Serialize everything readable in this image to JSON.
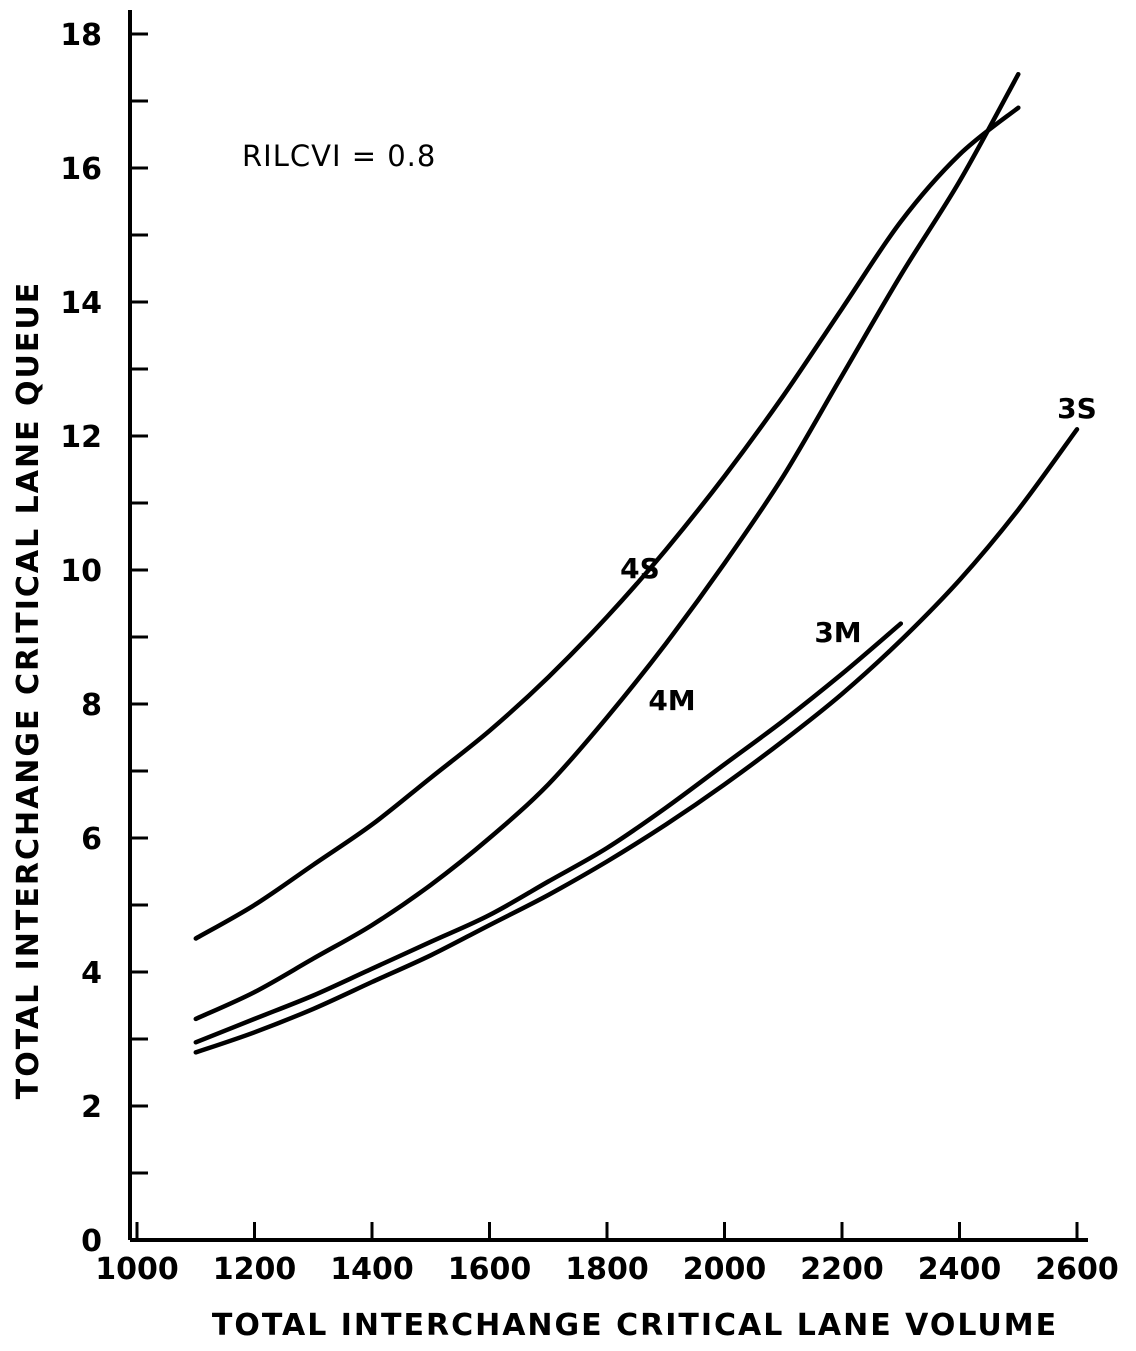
{
  "chart_data": {
    "type": "line",
    "xlabel": "TOTAL INTERCHANGE CRITICAL LANE VOLUME",
    "ylabel": "TOTAL INTERCHANGE CRITICAL LANE QUEUE",
    "annotation": "RILCVI = 0.8",
    "xlim": [
      1000,
      2600
    ],
    "ylim": [
      0,
      18
    ],
    "x_ticks": [
      "1000",
      "1200",
      "1400",
      "1600",
      "1800",
      "2000",
      "2200",
      "2400",
      "2600"
    ],
    "y_ticks": [
      "0",
      "2",
      "4",
      "6",
      "8",
      "10",
      "12",
      "14",
      "16",
      "18"
    ],
    "grid": false,
    "series": [
      {
        "name": "4S",
        "x": [
          1100,
          1200,
          1300,
          1400,
          1500,
          1600,
          1700,
          1800,
          1900,
          2000,
          2100,
          2200,
          2300,
          2400,
          2500
        ],
        "values": [
          4.5,
          5.0,
          5.6,
          6.2,
          6.9,
          7.6,
          8.4,
          9.3,
          10.3,
          11.4,
          12.6,
          13.9,
          15.2,
          16.2,
          16.9
        ]
      },
      {
        "name": "4M",
        "x": [
          1100,
          1200,
          1300,
          1400,
          1500,
          1600,
          1700,
          1800,
          1900,
          2000,
          2100,
          2200,
          2300,
          2400,
          2500
        ],
        "values": [
          3.3,
          3.7,
          4.2,
          4.7,
          5.3,
          6.0,
          6.8,
          7.8,
          8.9,
          10.1,
          11.4,
          12.9,
          14.4,
          15.8,
          17.4
        ]
      },
      {
        "name": "3M",
        "x": [
          1100,
          1200,
          1300,
          1400,
          1500,
          1600,
          1700,
          1800,
          1900,
          2000,
          2100,
          2200,
          2300
        ],
        "values": [
          2.95,
          3.3,
          3.65,
          4.05,
          4.45,
          4.85,
          5.35,
          5.85,
          6.45,
          7.1,
          7.75,
          8.45,
          9.2
        ]
      },
      {
        "name": "3S",
        "x": [
          1100,
          1200,
          1300,
          1400,
          1500,
          1600,
          1700,
          1800,
          1900,
          2000,
          2100,
          2200,
          2300,
          2400,
          2500,
          2600
        ],
        "values": [
          2.8,
          3.1,
          3.45,
          3.85,
          4.25,
          4.7,
          5.15,
          5.65,
          6.2,
          6.8,
          7.45,
          8.15,
          8.95,
          9.85,
          10.9,
          12.1
        ]
      }
    ]
  }
}
